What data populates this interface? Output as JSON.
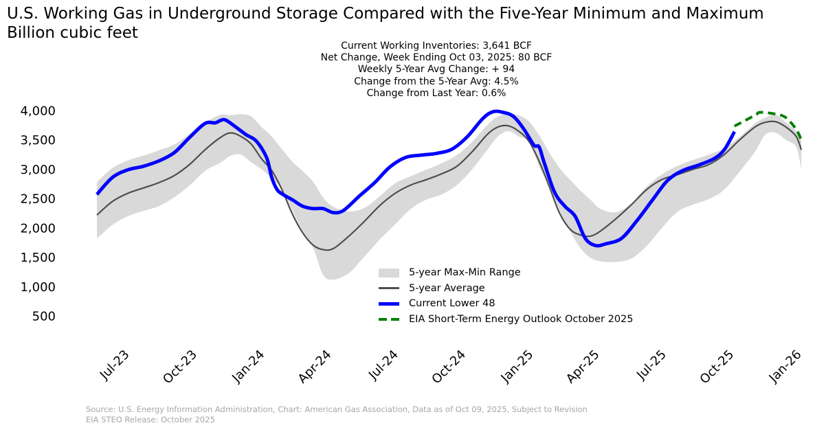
{
  "title": "U.S. Working Gas in Underground Storage Compared with the Five-Year Minimum and Maximum",
  "subtitle": "Billion cubic feet",
  "stats": [
    "Current Working Inventories: 3,641 BCF",
    "Net Change, Week Ending Oct 03, 2025: 80 BCF",
    "Weekly 5-Year Avg Change: + 94",
    "Change from the 5-Year Avg: 4.5%",
    "Change from Last Year: 0.6%"
  ],
  "legend": {
    "range": "5-year Max-Min Range",
    "avg": "5-year Average",
    "current": "Current Lower 48",
    "steo": "EIA Short-Term Energy Outlook October 2025"
  },
  "footer": {
    "line1": "Source: U.S. Energy Information Administration, Chart: American Gas Association, Data as of Oct 09, 2025, Subject to Revision",
    "line2": "EIA STEO Release: October 2025"
  },
  "colors": {
    "range": "#d9d9d9",
    "avg": "#4d4d4d",
    "current": "#0000ff",
    "steo": "#008000"
  },
  "chart_data": {
    "type": "line",
    "title": "U.S. Working Gas in Underground Storage Compared with the Five-Year Minimum and Maximum",
    "ylabel": "Billion cubic feet",
    "xlabel": "",
    "ylim": [
      0,
      4200
    ],
    "yticks": [
      500,
      1000,
      1500,
      2000,
      2500,
      3000,
      3500,
      4000
    ],
    "ytick_labels": [
      "500",
      "1,000",
      "1,500",
      "2,000",
      "2,500",
      "3,000",
      "3,500",
      "4,000"
    ],
    "xlim": [
      "2023-05-13",
      "2026-01-10"
    ],
    "xticks": [
      "2023-07-01",
      "2023-10-01",
      "2024-01-01",
      "2024-04-01",
      "2024-07-01",
      "2024-10-01",
      "2025-01-01",
      "2025-04-01",
      "2025-07-01",
      "2025-10-01",
      "2026-01-01"
    ],
    "xtick_labels": [
      "Jul-23",
      "Oct-23",
      "Jan-24",
      "Apr-24",
      "Jul-24",
      "Oct-24",
      "Jan-25",
      "Apr-25",
      "Jul-25",
      "Oct-25",
      "Jan-26"
    ],
    "grid": false,
    "legend_position": "lower-center",
    "range_band": {
      "name": "5-year Max-Min Range",
      "x": [
        "2023-05-19",
        "2023-06-09",
        "2023-06-30",
        "2023-07-21",
        "2023-08-11",
        "2023-09-01",
        "2023-09-22",
        "2023-10-13",
        "2023-11-03",
        "2023-11-17",
        "2023-12-01",
        "2023-12-15",
        "2023-12-29",
        "2024-01-12",
        "2024-01-26",
        "2024-02-09",
        "2024-02-23",
        "2024-03-08",
        "2024-03-22",
        "2024-04-05",
        "2024-04-26",
        "2024-05-17",
        "2024-06-07",
        "2024-06-28",
        "2024-07-19",
        "2024-08-09",
        "2024-08-30",
        "2024-09-20",
        "2024-10-11",
        "2024-11-01",
        "2024-11-15",
        "2024-11-29",
        "2024-12-13",
        "2024-12-27",
        "2025-01-10",
        "2025-01-24",
        "2025-02-07",
        "2025-02-21",
        "2025-03-07",
        "2025-03-21",
        "2025-04-04",
        "2025-04-25",
        "2025-05-16",
        "2025-06-06",
        "2025-06-27",
        "2025-07-18",
        "2025-08-08",
        "2025-08-29",
        "2025-09-19",
        "2025-10-10",
        "2025-10-31",
        "2025-11-14",
        "2025-11-28",
        "2025-12-12",
        "2025-12-26",
        "2026-01-02"
      ],
      "max": [
        2780,
        3020,
        3150,
        3230,
        3320,
        3420,
        3600,
        3790,
        3930,
        3920,
        3940,
        3900,
        3720,
        3560,
        3340,
        3130,
        2970,
        2790,
        2520,
        2360,
        2280,
        2340,
        2540,
        2760,
        2880,
        2990,
        3100,
        3240,
        3470,
        3760,
        3900,
        3950,
        3920,
        3820,
        3580,
        3280,
        3020,
        2820,
        2640,
        2480,
        2320,
        2270,
        2420,
        2710,
        2920,
        3060,
        3160,
        3250,
        3360,
        3550,
        3780,
        3880,
        3930,
        3800,
        3650,
        3530
      ],
      "min": [
        1820,
        2050,
        2200,
        2290,
        2370,
        2520,
        2720,
        2970,
        3110,
        3230,
        3250,
        3120,
        3000,
        2840,
        2660,
        2300,
        1950,
        1670,
        1200,
        1120,
        1230,
        1510,
        1800,
        2060,
        2320,
        2480,
        2570,
        2730,
        3000,
        3340,
        3560,
        3650,
        3560,
        3470,
        3050,
        2700,
        2300,
        1950,
        1660,
        1490,
        1430,
        1420,
        1480,
        1700,
        2010,
        2280,
        2400,
        2490,
        2650,
        2960,
        3300,
        3590,
        3620,
        3500,
        3380,
        3000
      ]
    },
    "series": [
      {
        "name": "5-year Average",
        "x": [
          "2023-05-19",
          "2023-06-09",
          "2023-06-30",
          "2023-07-21",
          "2023-08-11",
          "2023-09-01",
          "2023-09-22",
          "2023-10-13",
          "2023-11-03",
          "2023-11-17",
          "2023-12-01",
          "2023-12-15",
          "2023-12-29",
          "2024-01-12",
          "2024-01-26",
          "2024-02-09",
          "2024-02-23",
          "2024-03-08",
          "2024-03-22",
          "2024-04-05",
          "2024-04-26",
          "2024-05-17",
          "2024-06-07",
          "2024-06-28",
          "2024-07-19",
          "2024-08-09",
          "2024-08-30",
          "2024-09-20",
          "2024-10-11",
          "2024-11-01",
          "2024-11-15",
          "2024-11-29",
          "2024-12-13",
          "2024-12-27",
          "2025-01-10",
          "2025-01-24",
          "2025-02-07",
          "2025-02-21",
          "2025-03-07",
          "2025-03-21",
          "2025-04-04",
          "2025-04-25",
          "2025-05-16",
          "2025-06-06",
          "2025-06-27",
          "2025-07-18",
          "2025-08-08",
          "2025-08-29",
          "2025-09-19",
          "2025-10-10",
          "2025-10-31",
          "2025-11-14",
          "2025-11-28",
          "2025-12-12",
          "2025-12-26",
          "2026-01-02"
        ],
        "values": [
          2220,
          2450,
          2590,
          2680,
          2770,
          2890,
          3080,
          3330,
          3540,
          3620,
          3560,
          3430,
          3180,
          2980,
          2650,
          2240,
          1920,
          1710,
          1630,
          1650,
          1860,
          2110,
          2380,
          2590,
          2730,
          2820,
          2920,
          3050,
          3300,
          3600,
          3720,
          3740,
          3650,
          3480,
          3140,
          2700,
          2250,
          1980,
          1880,
          1860,
          1950,
          2160,
          2400,
          2660,
          2830,
          2910,
          3000,
          3080,
          3250,
          3500,
          3720,
          3800,
          3810,
          3720,
          3560,
          3330
        ]
      },
      {
        "name": "Current Lower 48",
        "x": [
          "2023-05-19",
          "2023-06-09",
          "2023-06-30",
          "2023-07-21",
          "2023-08-11",
          "2023-09-01",
          "2023-09-22",
          "2023-10-13",
          "2023-10-27",
          "2023-11-03",
          "2023-11-10",
          "2023-11-24",
          "2023-12-08",
          "2023-12-22",
          "2024-01-05",
          "2024-01-12",
          "2024-01-19",
          "2024-01-26",
          "2024-02-09",
          "2024-02-23",
          "2024-03-08",
          "2024-03-22",
          "2024-04-05",
          "2024-04-19",
          "2024-05-10",
          "2024-05-31",
          "2024-06-21",
          "2024-07-12",
          "2024-08-02",
          "2024-08-23",
          "2024-09-13",
          "2024-10-04",
          "2024-10-25",
          "2024-11-08",
          "2024-11-22",
          "2024-12-06",
          "2024-12-20",
          "2025-01-03",
          "2025-01-10",
          "2025-01-17",
          "2025-01-31",
          "2025-02-14",
          "2025-02-28",
          "2025-03-14",
          "2025-03-28",
          "2025-04-11",
          "2025-05-02",
          "2025-05-23",
          "2025-06-13",
          "2025-07-04",
          "2025-07-25",
          "2025-08-15",
          "2025-09-05",
          "2025-09-19",
          "2025-10-03"
        ],
        "values": [
          2570,
          2860,
          2990,
          3050,
          3140,
          3280,
          3540,
          3780,
          3790,
          3830,
          3840,
          3720,
          3590,
          3480,
          3200,
          2860,
          2660,
          2580,
          2480,
          2370,
          2330,
          2330,
          2260,
          2300,
          2540,
          2770,
          3040,
          3200,
          3240,
          3270,
          3340,
          3550,
          3860,
          3980,
          3970,
          3900,
          3690,
          3410,
          3380,
          3110,
          2610,
          2370,
          2200,
          1820,
          1700,
          1730,
          1820,
          2120,
          2470,
          2810,
          2980,
          3070,
          3180,
          3330,
          3641
        ]
      },
      {
        "name": "EIA Short-Term Energy Outlook October 2025",
        "style": "dashed",
        "x": [
          "2025-10-03",
          "2025-10-31",
          "2025-11-07",
          "2025-11-28",
          "2025-12-12",
          "2025-12-26",
          "2026-01-02"
        ],
        "values": [
          3735,
          3920,
          3970,
          3940,
          3880,
          3680,
          3500
        ]
      }
    ]
  }
}
